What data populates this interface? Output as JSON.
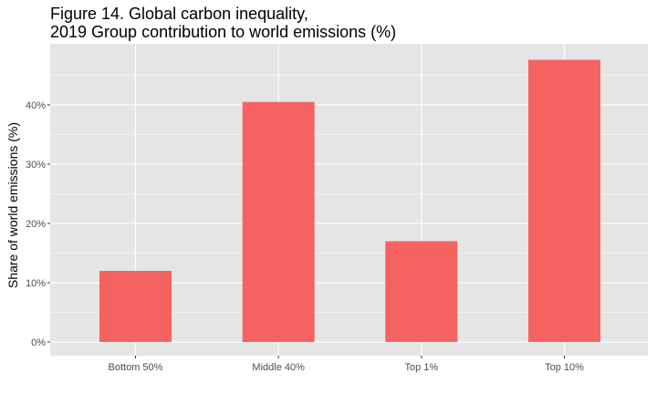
{
  "chart_data": {
    "type": "bar",
    "title_line1": "Figure 14. Global carbon inequality,",
    "title_line2": "2019 Group contribution to world emissions (%)",
    "xlabel": "",
    "ylabel": "Share of world emissions (%)",
    "categories": [
      "Bottom 50%",
      "Middle 40%",
      "Top 1%",
      "Top 10%"
    ],
    "values": [
      12,
      40.5,
      17,
      47.6
    ],
    "ylim": [
      0,
      50
    ],
    "yticks": [
      0,
      10,
      20,
      30,
      40
    ],
    "ytick_labels": [
      "0%",
      "10%",
      "20%",
      "30%",
      "40%"
    ],
    "grid": true,
    "bar_color": "#F46360",
    "panel_color": "#E5E5E5"
  }
}
